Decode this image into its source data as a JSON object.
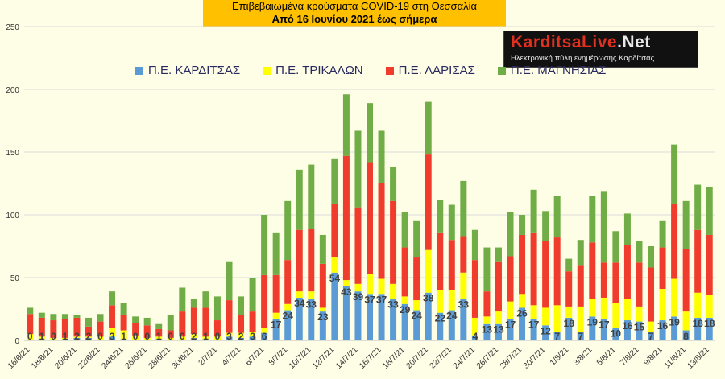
{
  "title_line1": "Επιβεβαιωμένα κρούσματα COVID-19 στη Θεσσαλία",
  "title_line2": "Από 16 Ιουνίου 2021 έως σήμερα",
  "logo": {
    "brand": "KarditsaLive",
    "brand_suffix": ".Net",
    "tagline": "Ηλεκτρονική πύλη ενημέρωσης Καρδίτσας"
  },
  "colors": {
    "karditsa": "#5b9bd5",
    "trikala": "#ffff00",
    "larisa": "#f03c2c",
    "magnisia": "#70ad47",
    "title_bg": "#ffc000",
    "background": "#fefee6"
  },
  "chart_data": {
    "type": "bar",
    "stacked": true,
    "title": "Επιβεβαιωμένα κρούσματα COVID-19 στη Θεσσαλία",
    "subtitle": "Από 16 Ιουνίου 2021 έως σήμερα",
    "ylim": [
      0,
      250
    ],
    "yticks": [
      0,
      50,
      100,
      150,
      200,
      250
    ],
    "grid": true,
    "legend_position": "top",
    "categories": [
      "16/6/21",
      "17/6/21",
      "18/6/21",
      "19/6/21",
      "20/6/21",
      "21/6/21",
      "22/6/21",
      "23/6/21",
      "24/6/21",
      "25/6/21",
      "26/6/21",
      "27/6/21",
      "28/6/21",
      "29/6/21",
      "30/6/21",
      "1/7/21",
      "2/7/21",
      "3/7/21",
      "4/7/21",
      "5/7/21",
      "6/7/21",
      "7/7/21",
      "8/7/21",
      "9/7/21",
      "10/7/21",
      "11/7/21",
      "12/7/21",
      "13/7/21",
      "14/7/21",
      "15/7/21",
      "16/7/21",
      "17/7/21",
      "18/7/21",
      "19/7/21",
      "20/7/21",
      "21/7/21",
      "22/7/21",
      "23/7/21",
      "24/7/21",
      "25/7/21",
      "26/7/21",
      "27/7/21",
      "28/7/21",
      "29/7/21",
      "30/7/21",
      "31/7/21",
      "1/8/21",
      "2/8/21",
      "3/8/21",
      "4/8/21",
      "5/8/21",
      "6/8/21",
      "7/8/21",
      "8/8/21",
      "9/8/21",
      "10/8/21",
      "11/8/21",
      "12/8/21",
      "13/8/21"
    ],
    "xtick_labels": [
      "16/6/21",
      "18/6/21",
      "20/6/21",
      "22/6/21",
      "24/6/21",
      "26/6/21",
      "28/6/21",
      "30/6/21",
      "2/7/21",
      "4/7/21",
      "6/7/21",
      "8/7/21",
      "10/7/21",
      "12/7/21",
      "14/7/21",
      "16/7/21",
      "18/7/21",
      "20/7/21",
      "22/7/21",
      "24/7/21",
      "26/7/21",
      "28/7/21",
      "30/7/21",
      "1/8/21",
      "3/8/21",
      "5/8/21",
      "7/8/21",
      "9/8/21",
      "11/8/21",
      "13/8/21"
    ],
    "series": [
      {
        "name": "Π.Ε. ΚΑΡΔΙΤΣΑΣ",
        "values": [
          0,
          1,
          0,
          1,
          2,
          2,
          0,
          3,
          1,
          0,
          0,
          1,
          0,
          0,
          2,
          1,
          0,
          3,
          2,
          3,
          6,
          17,
          24,
          34,
          33,
          23,
          54,
          43,
          39,
          37,
          37,
          33,
          29,
          24,
          38,
          22,
          24,
          33,
          4,
          13,
          13,
          17,
          26,
          17,
          12,
          7,
          18,
          7,
          19,
          17,
          10,
          16,
          15,
          7,
          16,
          19,
          8,
          18,
          18
        ]
      },
      {
        "name": "Π.Ε. ΤΡΙΚΑΛΩΝ",
        "values": [
          5,
          2,
          2,
          1,
          1,
          1,
          3,
          7,
          7,
          4,
          2,
          2,
          2,
          3,
          3,
          2,
          3,
          3,
          4,
          4,
          4,
          5,
          5,
          5,
          6,
          3,
          12,
          5,
          6,
          16,
          12,
          12,
          6,
          8,
          34,
          18,
          16,
          21,
          14,
          6,
          10,
          14,
          11,
          11,
          14,
          21,
          9,
          20,
          14,
          17,
          20,
          17,
          12,
          8,
          25,
          30,
          15,
          20,
          18
        ]
      },
      {
        "name": "Π.Ε. ΛΑΡΙΣΑΣ",
        "values": [
          16,
          15,
          14,
          15,
          15,
          8,
          12,
          18,
          12,
          10,
          10,
          6,
          6,
          20,
          21,
          23,
          13,
          26,
          14,
          16,
          42,
          30,
          35,
          49,
          50,
          35,
          43,
          99,
          61,
          89,
          76,
          66,
          39,
          34,
          76,
          46,
          40,
          29,
          46,
          20,
          40,
          36,
          47,
          58,
          53,
          54,
          28,
          33,
          45,
          28,
          32,
          43,
          35,
          43,
          33,
          60,
          50,
          50,
          48
        ]
      },
      {
        "name": "Π.Ε. ΜΑΓΝΗΣΙΑΣ",
        "values": [
          5,
          4,
          5,
          4,
          2,
          7,
          6,
          11,
          10,
          5,
          6,
          4,
          12,
          19,
          7,
          13,
          19,
          31,
          15,
          27,
          48,
          34,
          47,
          48,
          51,
          23,
          36,
          49,
          61,
          47,
          42,
          27,
          28,
          29,
          42,
          26,
          28,
          44,
          24,
          35,
          11,
          35,
          16,
          34,
          24,
          33,
          10,
          20,
          37,
          57,
          25,
          25,
          17,
          17,
          21,
          47,
          38,
          36,
          38
        ]
      }
    ]
  }
}
